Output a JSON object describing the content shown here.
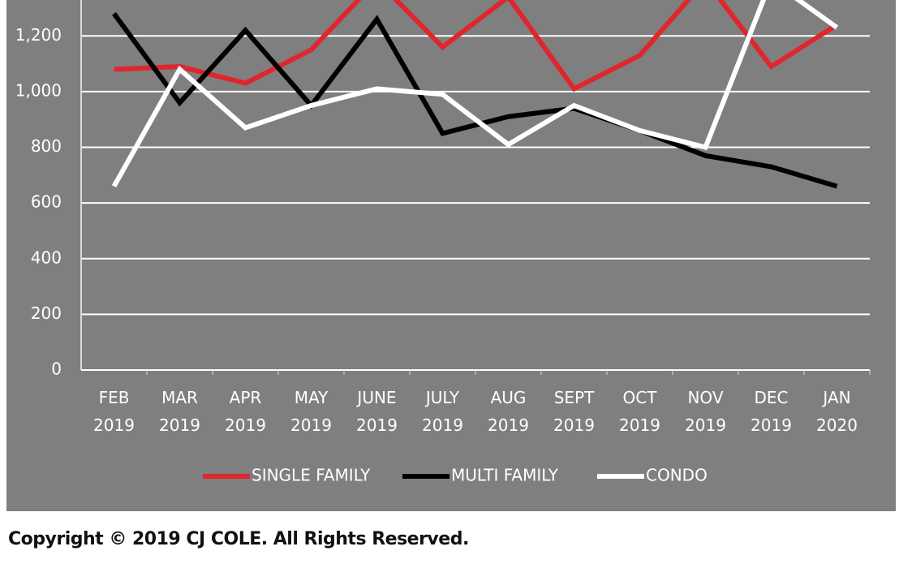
{
  "chart_data": {
    "type": "line",
    "categories": [
      "FEB\n2019",
      "MAR\n2019",
      "APR\n2019",
      "MAY\n2019",
      "JUNE\n2019",
      "JULY\n2019",
      "AUG\n2019",
      "SEPT\n2019",
      "OCT\n2019",
      "NOV\n2019",
      "DEC\n2019",
      "JAN\n2020"
    ],
    "series": [
      {
        "name": "SINGLE FAMILY",
        "color": "#e0262d",
        "values": [
          1080,
          1090,
          1030,
          1150,
          1400,
          1160,
          1340,
          1010,
          1130,
          1400,
          1090,
          1240
        ]
      },
      {
        "name": "MULTI FAMILY",
        "color": "#000000",
        "values": [
          1280,
          960,
          1220,
          950,
          1260,
          850,
          910,
          940,
          860,
          770,
          730,
          660
        ]
      },
      {
        "name": "CONDO",
        "color": "#ffffff",
        "values": [
          660,
          1080,
          870,
          950,
          1010,
          990,
          810,
          950,
          860,
          800,
          1400,
          1230
        ]
      }
    ],
    "ylim": [
      0,
      1329
    ],
    "yticks": [
      0,
      200,
      400,
      600,
      800,
      {
        "value": 1000,
        "label": "1,000"
      },
      {
        "value": 1200,
        "label": "1,200"
      }
    ],
    "grid": true,
    "legend": "bottom"
  },
  "footer": "Copyright © 2019 CJ COLE. All Rights Reserved."
}
